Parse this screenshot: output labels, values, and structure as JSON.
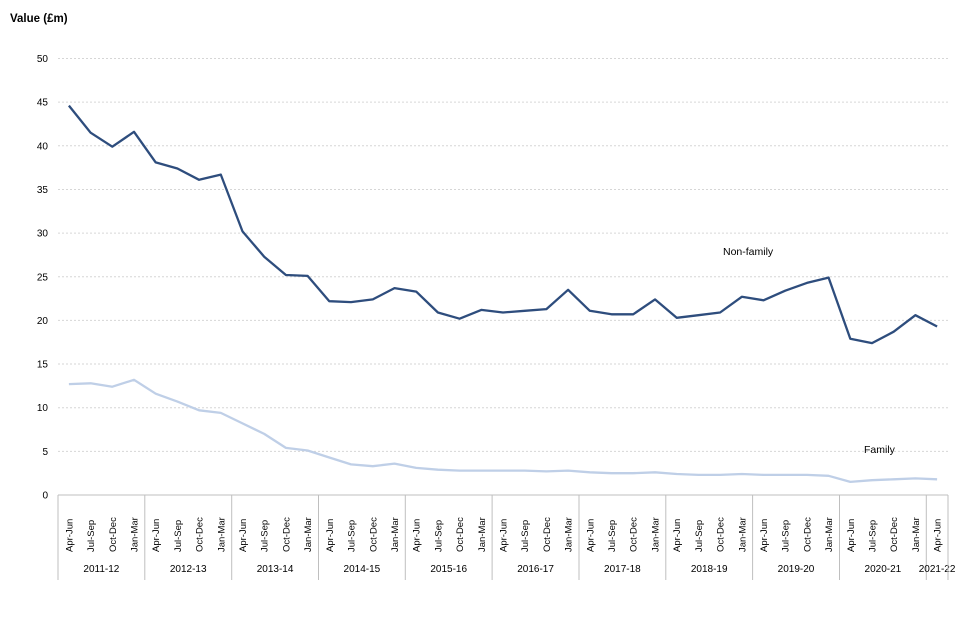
{
  "chart_data": {
    "type": "line",
    "title": "Value (£m)",
    "ylabel": "Value (£m)",
    "ylim": [
      0,
      50
    ],
    "ytick_step": 5,
    "ytick_labels": [
      "0",
      "5",
      "10",
      "15",
      "20",
      "25",
      "30",
      "35",
      "40",
      "45",
      "50"
    ],
    "grid": "horizontal dotted gridlines, no plot border, no y-axis line",
    "legend_position": "inline labels next to lines",
    "quarter_pattern": [
      "Apr-Jun",
      "Jul-Sep",
      "Oct-Dec",
      "Jan-Mar"
    ],
    "year_groups": [
      {
        "label": "2011-12",
        "count": 4
      },
      {
        "label": "2012-13",
        "count": 4
      },
      {
        "label": "2013-14",
        "count": 4
      },
      {
        "label": "2014-15",
        "count": 4
      },
      {
        "label": "2015-16",
        "count": 4
      },
      {
        "label": "2016-17",
        "count": 4
      },
      {
        "label": "2017-18",
        "count": 4
      },
      {
        "label": "2018-19",
        "count": 4
      },
      {
        "label": "2019-20",
        "count": 4
      },
      {
        "label": "2020-21",
        "count": 4
      },
      {
        "label": "2021-22",
        "count": 1
      }
    ],
    "series": [
      {
        "name": "Non-family",
        "color": "#2e4d7d",
        "values": [
          44.6,
          41.5,
          39.9,
          41.6,
          38.1,
          37.4,
          36.1,
          36.7,
          30.2,
          27.3,
          25.2,
          25.1,
          22.2,
          22.1,
          22.4,
          23.7,
          23.3,
          20.9,
          20.2,
          21.2,
          20.9,
          21.1,
          21.3,
          23.5,
          21.1,
          20.7,
          20.7,
          22.4,
          20.3,
          20.6,
          20.9,
          22.7,
          22.3,
          23.4,
          24.3,
          24.9,
          17.9,
          17.4,
          18.7,
          20.6,
          19.3
        ]
      },
      {
        "name": "Family",
        "color": "#bfcfe7",
        "values": [
          12.7,
          12.8,
          12.4,
          13.2,
          11.6,
          10.7,
          9.7,
          9.4,
          8.2,
          7.0,
          5.4,
          5.1,
          4.3,
          3.5,
          3.3,
          3.6,
          3.1,
          2.9,
          2.8,
          2.8,
          2.8,
          2.8,
          2.7,
          2.8,
          2.6,
          2.5,
          2.5,
          2.6,
          2.4,
          2.3,
          2.3,
          2.4,
          2.3,
          2.3,
          2.3,
          2.2,
          1.5,
          1.7,
          1.8,
          1.9,
          1.8
        ]
      }
    ],
    "axis_colors": {
      "gridline": "#d6d6d6",
      "axis_line": "#bfbfbf",
      "tick_text": "#000000"
    }
  }
}
